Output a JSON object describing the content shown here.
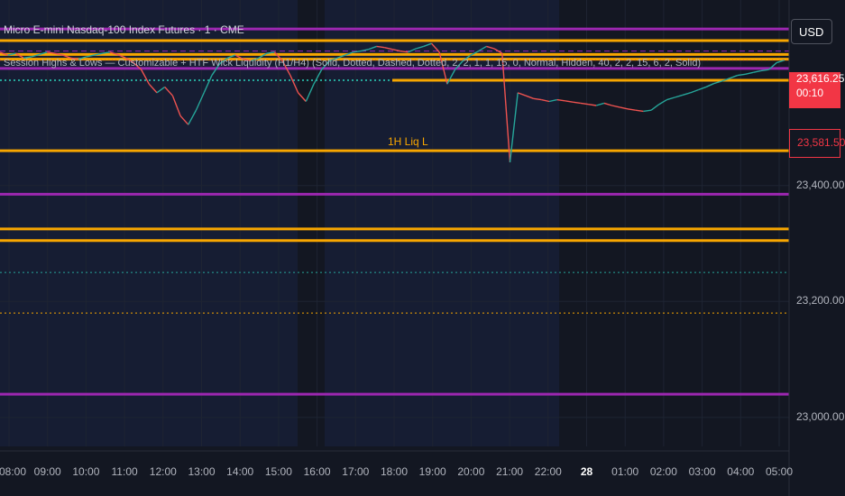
{
  "header": {
    "title": "Micro E-mini Nasdaq-100 Index Futures · 1 · CME",
    "indicator": "Session Highs & Lows — Customizable + HTF Wick Liquidity (H1/H4) (Solid, Dotted, Dashed, Dotted, 2, 2, 1, 1, 15, 0, Normal, Hidden, 40, 2, 2, 15, 6, 2, Solid)"
  },
  "currency_button": {
    "label": "USD"
  },
  "price_badges": {
    "last_price": "23,616.25",
    "countdown": "00:10",
    "line_price": "23,581.50"
  },
  "annotations": {
    "liq_label": "1H Liq L"
  },
  "colors": {
    "background": "#131722",
    "session_shade": "#1a2342",
    "orange": "#f7a600",
    "purple": "#9c27b0",
    "teal": "#26a69a",
    "red": "#ef5350",
    "last_price": "#f23645"
  },
  "chart_data": {
    "type": "line",
    "title": "Micro E-mini Nasdaq-100 Index Futures · 1 · CME",
    "xlabel": "",
    "ylabel": "",
    "ylim": [
      22950,
      23720
    ],
    "y_ticks": [
      "23,400.00",
      "23,200.00",
      "23,000.00"
    ],
    "y_tick_values": [
      23400,
      23200,
      23000
    ],
    "x_ticks": [
      "08:00",
      "09:00",
      "10:00",
      "11:00",
      "12:00",
      "13:00",
      "14:00",
      "15:00",
      "16:00",
      "17:00",
      "18:00",
      "19:00",
      "20:00",
      "21:00",
      "22:00",
      "28",
      "01:00",
      "02:00",
      "03:00",
      "04:00",
      "05:00"
    ],
    "grid": true,
    "series": [
      {
        "values": [
          23630,
          23625,
          23628,
          23620,
          23622,
          23626,
          23630,
          23628,
          23625,
          23620,
          23618,
          23622,
          23625,
          23628,
          23630,
          23626,
          23620,
          23612,
          23600,
          23575,
          23560,
          23570,
          23555,
          23520,
          23505,
          23530,
          23560,
          23590,
          23610,
          23620,
          23625,
          23618,
          23615,
          23620,
          23628,
          23630,
          23615,
          23590,
          23560,
          23545,
          23575,
          23600,
          23615,
          23620,
          23625,
          23630,
          23632,
          23635,
          23640,
          23638,
          23635,
          23632,
          23630,
          23636,
          23640,
          23645,
          23630,
          23575,
          23600,
          23615,
          23625,
          23632,
          23640,
          23636,
          23628,
          23440,
          23560,
          23555,
          23550,
          23548,
          23545,
          23548,
          23546,
          23544,
          23542,
          23540,
          23538,
          23542,
          23538,
          23535,
          23532,
          23530,
          23528,
          23530,
          23540,
          23548,
          23552,
          23556,
          23560,
          23565,
          23570,
          23576,
          23580,
          23585,
          23590,
          23592,
          23595,
          23598,
          23600,
          23612,
          23616.25
        ]
      }
    ],
    "horizontal_levels": [
      {
        "price": 23670,
        "style": "solid",
        "color": "purple"
      },
      {
        "price": 23650,
        "style": "solid",
        "color": "orange"
      },
      {
        "price": 23632,
        "style": "dashed",
        "color": "purple"
      },
      {
        "price": 23626,
        "style": "solid",
        "color": "orange"
      },
      {
        "price": 23618,
        "style": "solid",
        "color": "orange"
      },
      {
        "price": 23602,
        "style": "solid",
        "color": "purple"
      },
      {
        "price": 23581.5,
        "style": "solid",
        "color": "orange"
      },
      {
        "price": 23460,
        "style": "solid",
        "color": "orange"
      },
      {
        "price": 23385,
        "style": "solid",
        "color": "purple"
      },
      {
        "price": 23325,
        "style": "solid",
        "color": "orange"
      },
      {
        "price": 23305,
        "style": "solid",
        "color": "orange"
      },
      {
        "price": 23250,
        "style": "dotted",
        "color": "teal"
      },
      {
        "price": 23180,
        "style": "dotted",
        "color": "orange"
      },
      {
        "price": 23040,
        "style": "solid",
        "color": "purple"
      }
    ]
  }
}
